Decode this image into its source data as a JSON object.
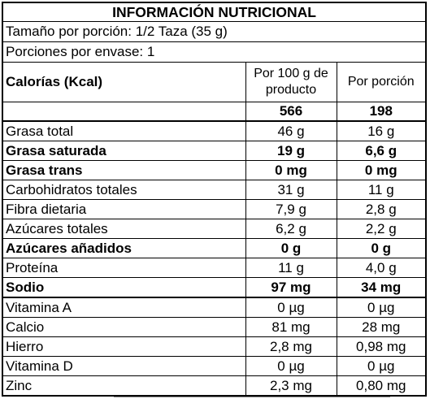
{
  "title": "INFORMACIÓN NUTRICIONAL",
  "serving_size": "Tamaño por porción: 1/2 Taza (35 g)",
  "servings_per_container": "Porciones por envase: 1",
  "header": {
    "calories_label": "Calorías (Kcal)",
    "col_per_100": "Por 100 g de producto",
    "col_per_serving": "Por porción",
    "calories_per_100": "566",
    "calories_per_serving": "198"
  },
  "nutrients": [
    {
      "name": "Grasa total",
      "per_100": "46 g",
      "per_serving": "16 g",
      "bold": false
    },
    {
      "name": "Grasa saturada",
      "per_100": "19 g",
      "per_serving": "6,6 g",
      "bold": true
    },
    {
      "name": "Grasa trans",
      "per_100": "0 mg",
      "per_serving": "0 mg",
      "bold": true
    },
    {
      "name": "Carbohidratos totales",
      "per_100": "31 g",
      "per_serving": "11 g",
      "bold": false
    },
    {
      "name": "Fibra dietaria",
      "per_100": "7,9 g",
      "per_serving": "2,8 g",
      "bold": false
    },
    {
      "name": "Azúcares totales",
      "per_100": "6,2 g",
      "per_serving": "2,2 g",
      "bold": false
    },
    {
      "name": "Azúcares añadidos",
      "per_100": "0 g",
      "per_serving": "0 g",
      "bold": true
    },
    {
      "name": "Proteína",
      "per_100": "11 g",
      "per_serving": "4,0 g",
      "bold": false
    },
    {
      "name": "Sodio",
      "per_100": "97 mg",
      "per_serving": "34 mg",
      "bold": true
    }
  ],
  "micronutrients": [
    {
      "name": "Vitamina A",
      "per_100": "0 µg",
      "per_serving": "0 µg"
    },
    {
      "name": "Calcio",
      "per_100": "81 mg",
      "per_serving": "28 mg"
    },
    {
      "name": "Hierro",
      "per_100": "2,8 mg",
      "per_serving": "0,98 mg"
    },
    {
      "name": "Vitamina D",
      "per_100": "0 µg",
      "per_serving": "0 µg"
    },
    {
      "name": "Zinc",
      "per_100": "2,3 mg",
      "per_serving": "0,80 mg"
    }
  ]
}
